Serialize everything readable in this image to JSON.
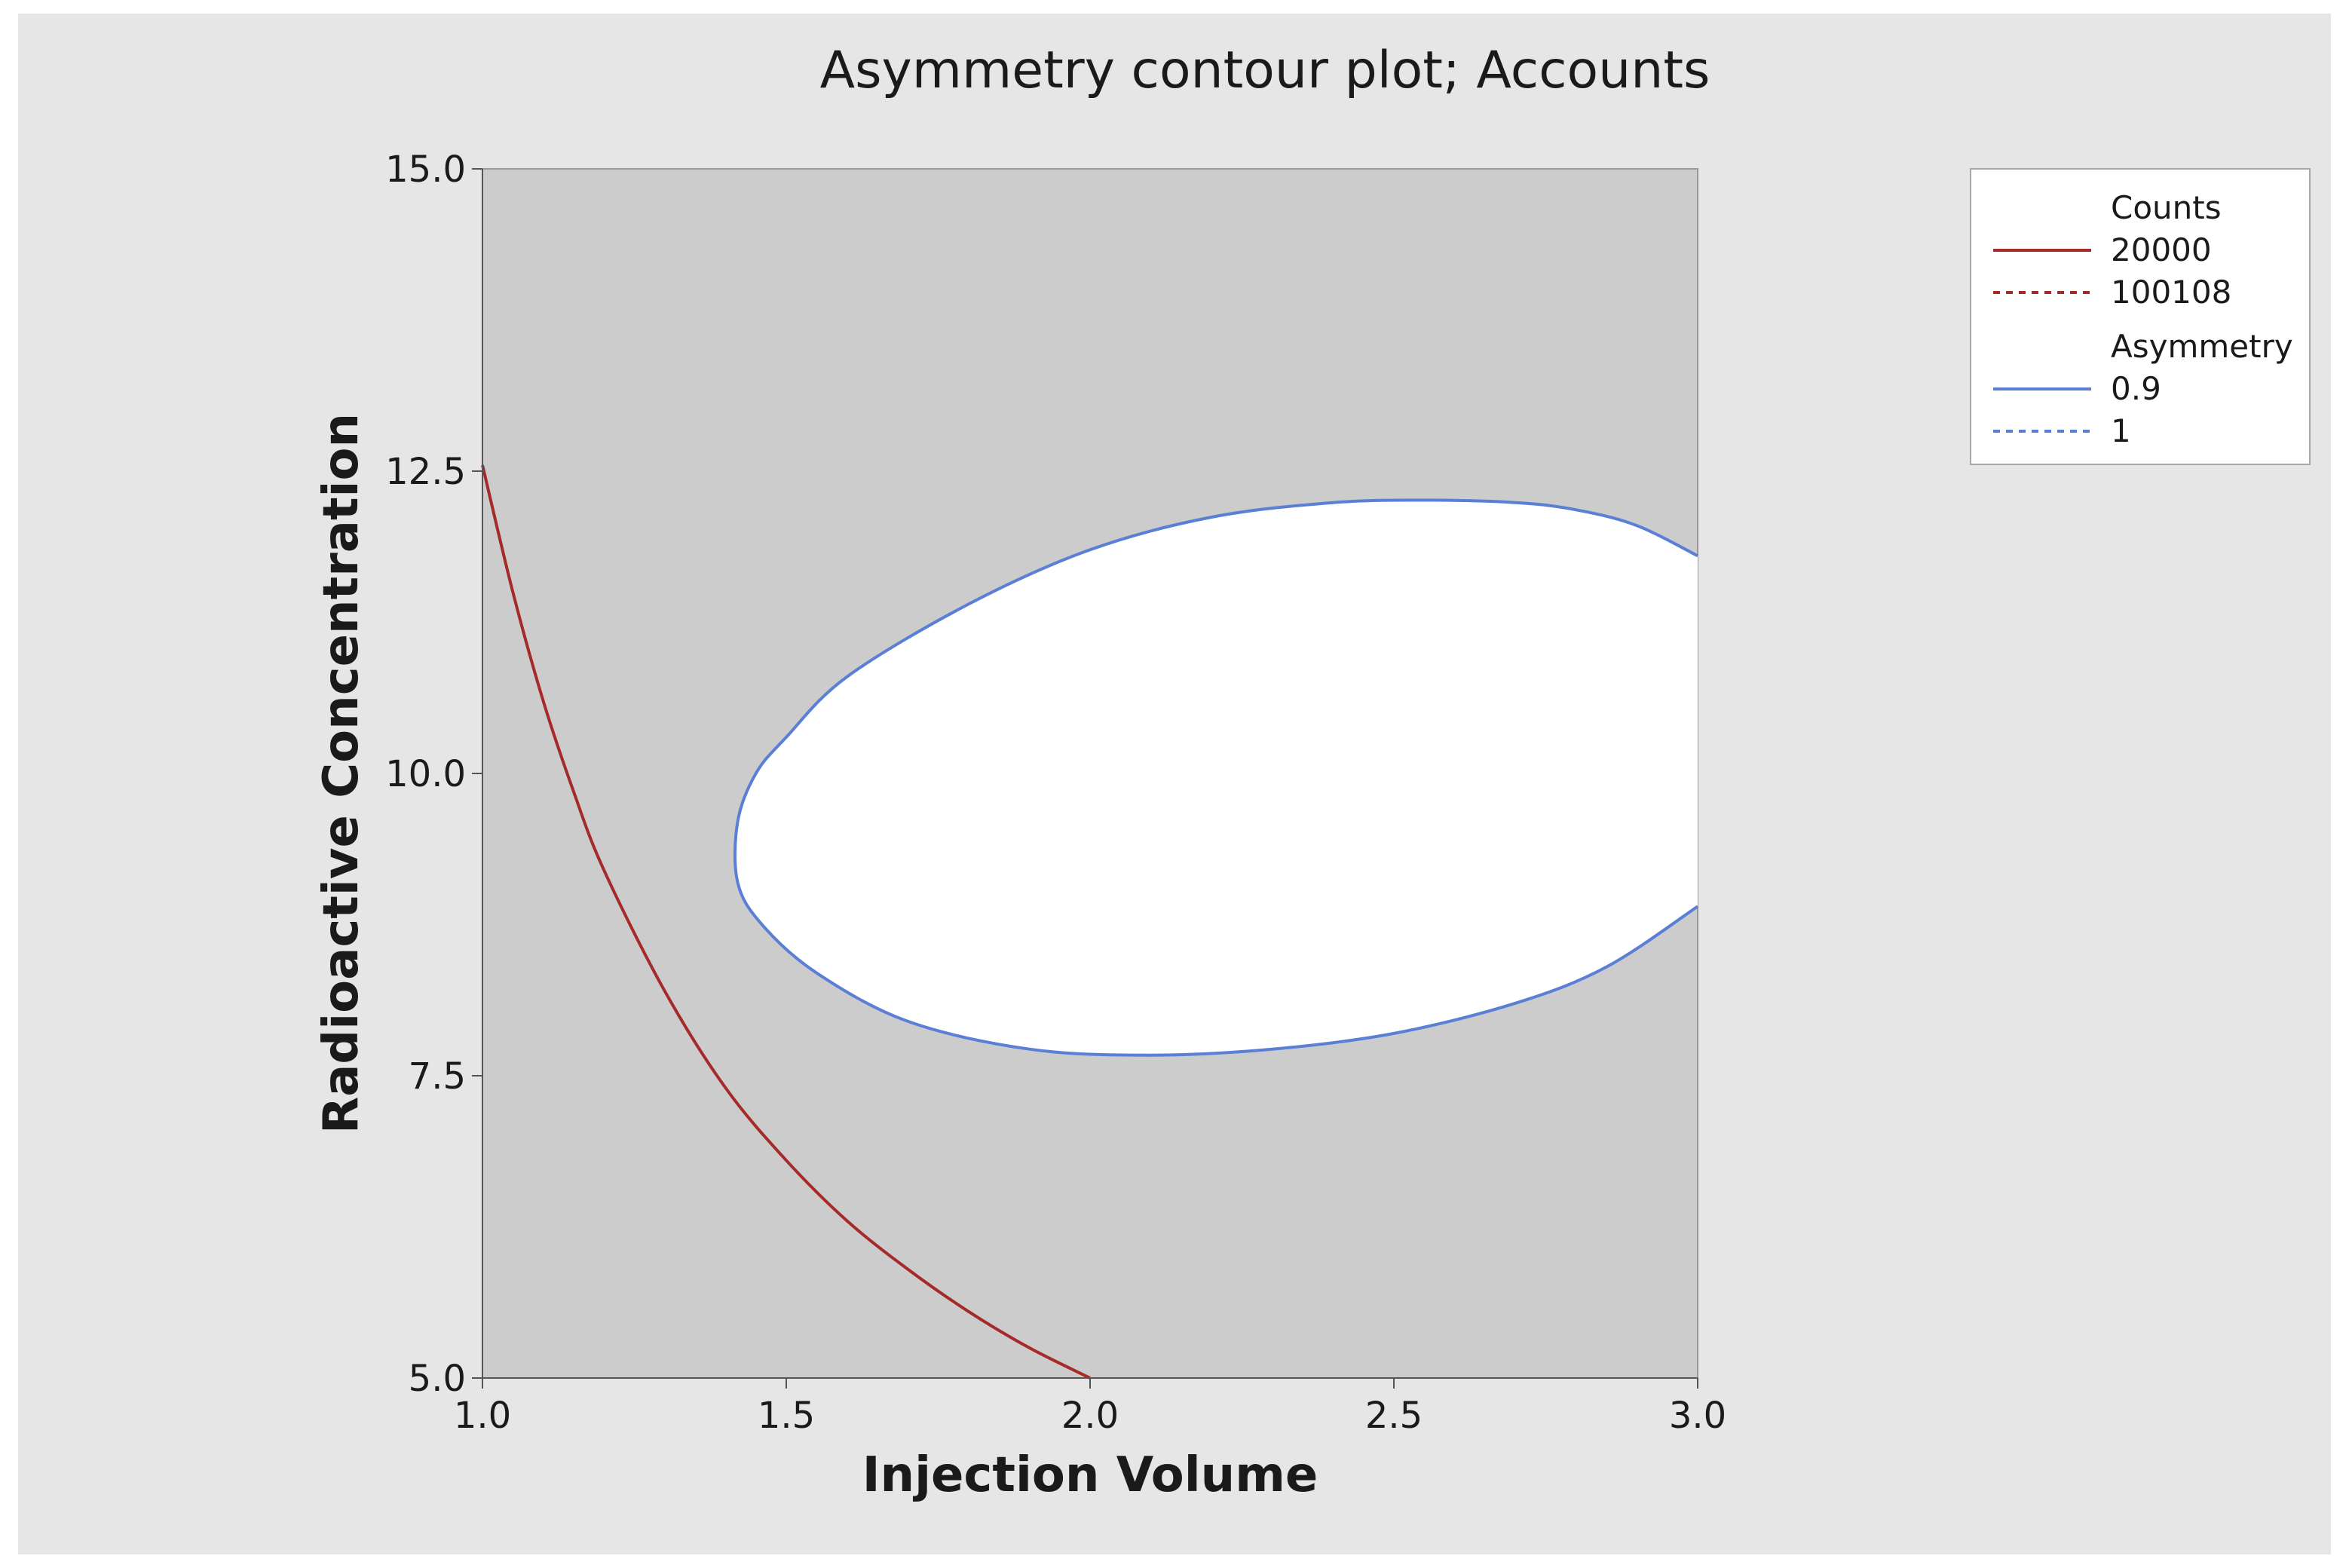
{
  "chart_data": {
    "type": "contour",
    "title": "Asymmetry contour plot; Accounts",
    "xlabel": "Injection Volume",
    "ylabel": "Radioactive Concentration",
    "xlim": [
      1.0,
      3.0
    ],
    "ylim": [
      5.0,
      15.0
    ],
    "x_ticks": [
      "1.0",
      "1.5",
      "2.0",
      "2.5",
      "3.0"
    ],
    "y_ticks": [
      "5.0",
      "7.5",
      "10.0",
      "12.5",
      "15.0"
    ],
    "legend_position": "top-right",
    "legend_groups": [
      {
        "title": "Counts",
        "color": "#a52a2a",
        "entries": [
          {
            "label": "20000",
            "style": "solid"
          },
          {
            "label": "100108",
            "style": "dashed"
          }
        ]
      },
      {
        "title": "Asymmetry",
        "color": "#5b7fd6",
        "entries": [
          {
            "label": "0.9",
            "style": "solid"
          },
          {
            "label": "1",
            "style": "dashed"
          }
        ]
      }
    ],
    "colors": {
      "feasible_region": "#ffffff",
      "infeasible_region": "#cccccc",
      "counts_line": "#a52a2a",
      "asymmetry_line": "#5b7fd6"
    },
    "contours": [
      {
        "series": "Counts 20000",
        "points": [
          [
            1.0,
            12.55
          ],
          [
            1.05,
            11.5
          ],
          [
            1.1,
            10.6
          ],
          [
            1.15,
            9.85
          ],
          [
            1.2,
            9.2
          ],
          [
            1.3,
            8.2
          ],
          [
            1.4,
            7.4
          ],
          [
            1.5,
            6.8
          ],
          [
            1.6,
            6.3
          ],
          [
            1.7,
            5.9
          ],
          [
            1.8,
            5.55
          ],
          [
            1.9,
            5.25
          ],
          [
            2.0,
            5.0
          ]
        ]
      },
      {
        "series": "Asymmetry 0.9",
        "points": [
          [
            3.0,
            11.8
          ],
          [
            2.9,
            12.05
          ],
          [
            2.8,
            12.18
          ],
          [
            2.7,
            12.24
          ],
          [
            2.55,
            12.26
          ],
          [
            2.4,
            12.24
          ],
          [
            2.2,
            12.12
          ],
          [
            2.0,
            11.85
          ],
          [
            1.8,
            11.4
          ],
          [
            1.6,
            10.8
          ],
          [
            1.5,
            10.3
          ],
          [
            1.45,
            10.0
          ],
          [
            1.42,
            9.6
          ],
          [
            1.42,
            9.1
          ],
          [
            1.46,
            8.75
          ],
          [
            1.55,
            8.35
          ],
          [
            1.7,
            7.95
          ],
          [
            1.9,
            7.72
          ],
          [
            2.1,
            7.67
          ],
          [
            2.3,
            7.72
          ],
          [
            2.5,
            7.85
          ],
          [
            2.7,
            8.1
          ],
          [
            2.85,
            8.4
          ],
          [
            3.0,
            8.9
          ]
        ]
      }
    ]
  }
}
